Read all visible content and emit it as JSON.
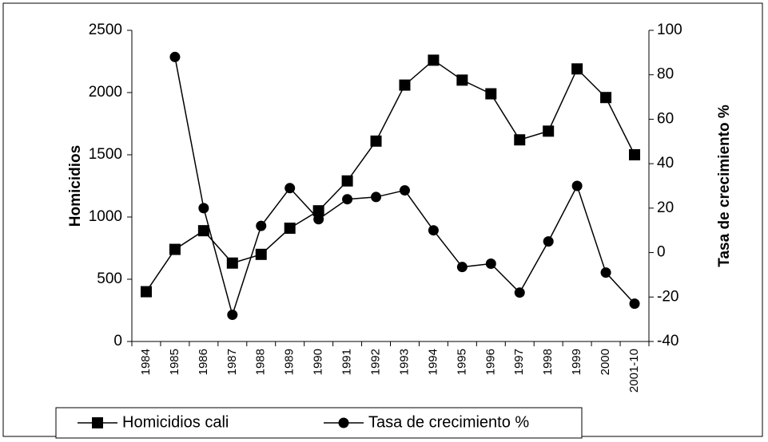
{
  "chart_data": {
    "type": "line",
    "categories": [
      "1984",
      "1985",
      "1986",
      "1987",
      "1988",
      "1989",
      "1990",
      "1991",
      "1992",
      "1993",
      "1994",
      "1995",
      "1996",
      "1997",
      "1998",
      "1999",
      "2000",
      "2001-10"
    ],
    "y_label": "Homicidios",
    "y2_label": "Tasa de crecimiento %",
    "ylim": [
      0,
      2500
    ],
    "yticks": [
      0,
      500,
      1000,
      1500,
      2000,
      2500
    ],
    "y2lim": [
      -40,
      100
    ],
    "y2ticks": [
      -40,
      -20,
      0,
      20,
      40,
      60,
      80,
      100
    ],
    "legend": "bottom",
    "series": [
      {
        "name": "Homicidios cali",
        "color": "#000000",
        "marker": "square",
        "values": [
          400,
          740,
          890,
          630,
          700,
          910,
          1050,
          1290,
          1610,
          2060,
          2260,
          2100,
          1990,
          1620,
          1690,
          2190,
          1960,
          1500
        ]
      },
      {
        "name": "Tasa de crecimiento %",
        "color": "#000000",
        "marker": "circle",
        "axis": "y2",
        "values": [
          null,
          88,
          20,
          -28,
          12,
          29,
          15,
          24,
          25,
          28,
          10,
          -6.5,
          -5,
          -18,
          5,
          30,
          -9,
          -23
        ]
      }
    ]
  }
}
